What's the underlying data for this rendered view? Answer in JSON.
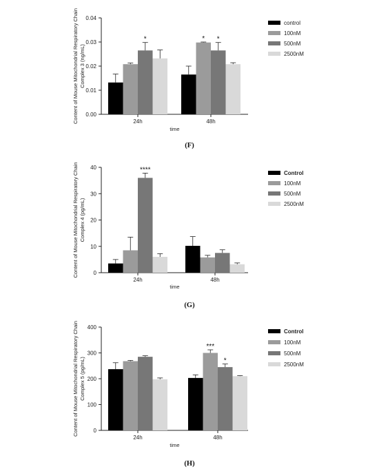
{
  "chart_data": [
    {
      "type": "bar",
      "panel": "(F)",
      "ylabel": "Content of Mouse Mitochondrial Respiratory Chain Complex 3 (ng/mL)",
      "xlabel": "time",
      "categories": [
        "24h",
        "48h"
      ],
      "ylim": [
        0,
        0.04
      ],
      "yticks": [
        "0.00",
        "0.01",
        "0.02",
        "0.03",
        "0.04"
      ],
      "legend_bold": false,
      "series": [
        {
          "name": "control",
          "color": "#000000",
          "values": [
            0.0132,
            0.0165
          ],
          "errors": [
            0.0035,
            0.0035
          ],
          "stars": [
            "",
            ""
          ]
        },
        {
          "name": "100nM",
          "color": "#9b9b9b",
          "values": [
            0.0208,
            0.0298
          ],
          "errors": [
            0.0005,
            0.0002
          ],
          "stars": [
            "",
            "*"
          ]
        },
        {
          "name": "500nM",
          "color": "#777777",
          "values": [
            0.0265,
            0.0265
          ],
          "errors": [
            0.0033,
            0.0033
          ],
          "stars": [
            "*",
            "*"
          ]
        },
        {
          "name": "2500nM",
          "color": "#d9d9d9",
          "values": [
            0.0232,
            0.0208
          ],
          "errors": [
            0.0035,
            0.0006
          ],
          "stars": [
            "",
            ""
          ]
        }
      ]
    },
    {
      "type": "bar",
      "panel": "(G)",
      "ylabel": "Content of Mouse Mitochondrial Respiratory Chain Complex 4 (pg/mL)",
      "xlabel": "time",
      "categories": [
        "24h",
        "48h"
      ],
      "ylim": [
        0,
        40
      ],
      "yticks": [
        "0",
        "10",
        "20",
        "30",
        "40"
      ],
      "legend_bold": true,
      "series": [
        {
          "name": "Control",
          "color": "#000000",
          "values": [
            3.5,
            10.2
          ],
          "errors": [
            1.5,
            3.5
          ],
          "stars": [
            "",
            ""
          ]
        },
        {
          "name": "100nM",
          "color": "#9b9b9b",
          "values": [
            8.5,
            5.8
          ],
          "errors": [
            5.0,
            0.8
          ],
          "stars": [
            "",
            ""
          ]
        },
        {
          "name": "500nM",
          "color": "#777777",
          "values": [
            36.0,
            7.5
          ],
          "errors": [
            1.8,
            1.2
          ],
          "stars": [
            "****",
            ""
          ]
        },
        {
          "name": "2500nM",
          "color": "#d9d9d9",
          "values": [
            6.0,
            3.2
          ],
          "errors": [
            1.2,
            0.5
          ],
          "stars": [
            "",
            ""
          ]
        }
      ]
    },
    {
      "type": "bar",
      "panel": "(H)",
      "ylabel": "Content of Mouse Mitochondrial Respiratory Chain Complex 5 (pg/mL)",
      "xlabel": "time",
      "categories": [
        "24h",
        "48h"
      ],
      "ylim": [
        0,
        400
      ],
      "yticks": [
        "0",
        "100",
        "200",
        "300",
        "400"
      ],
      "legend_bold": true,
      "series": [
        {
          "name": "Control",
          "color": "#000000",
          "values": [
            237,
            203
          ],
          "errors": [
            25,
            12
          ],
          "stars": [
            "",
            ""
          ]
        },
        {
          "name": "100nM",
          "color": "#9b9b9b",
          "values": [
            268,
            300
          ],
          "errors": [
            3,
            12
          ],
          "stars": [
            "",
            "***"
          ]
        },
        {
          "name": "500nM",
          "color": "#777777",
          "values": [
            285,
            245
          ],
          "errors": [
            4,
            12
          ],
          "stars": [
            "",
            "*"
          ]
        },
        {
          "name": "2500nM",
          "color": "#d9d9d9",
          "values": [
            198,
            210
          ],
          "errors": [
            5,
            2
          ],
          "stars": [
            "",
            ""
          ]
        }
      ]
    }
  ]
}
